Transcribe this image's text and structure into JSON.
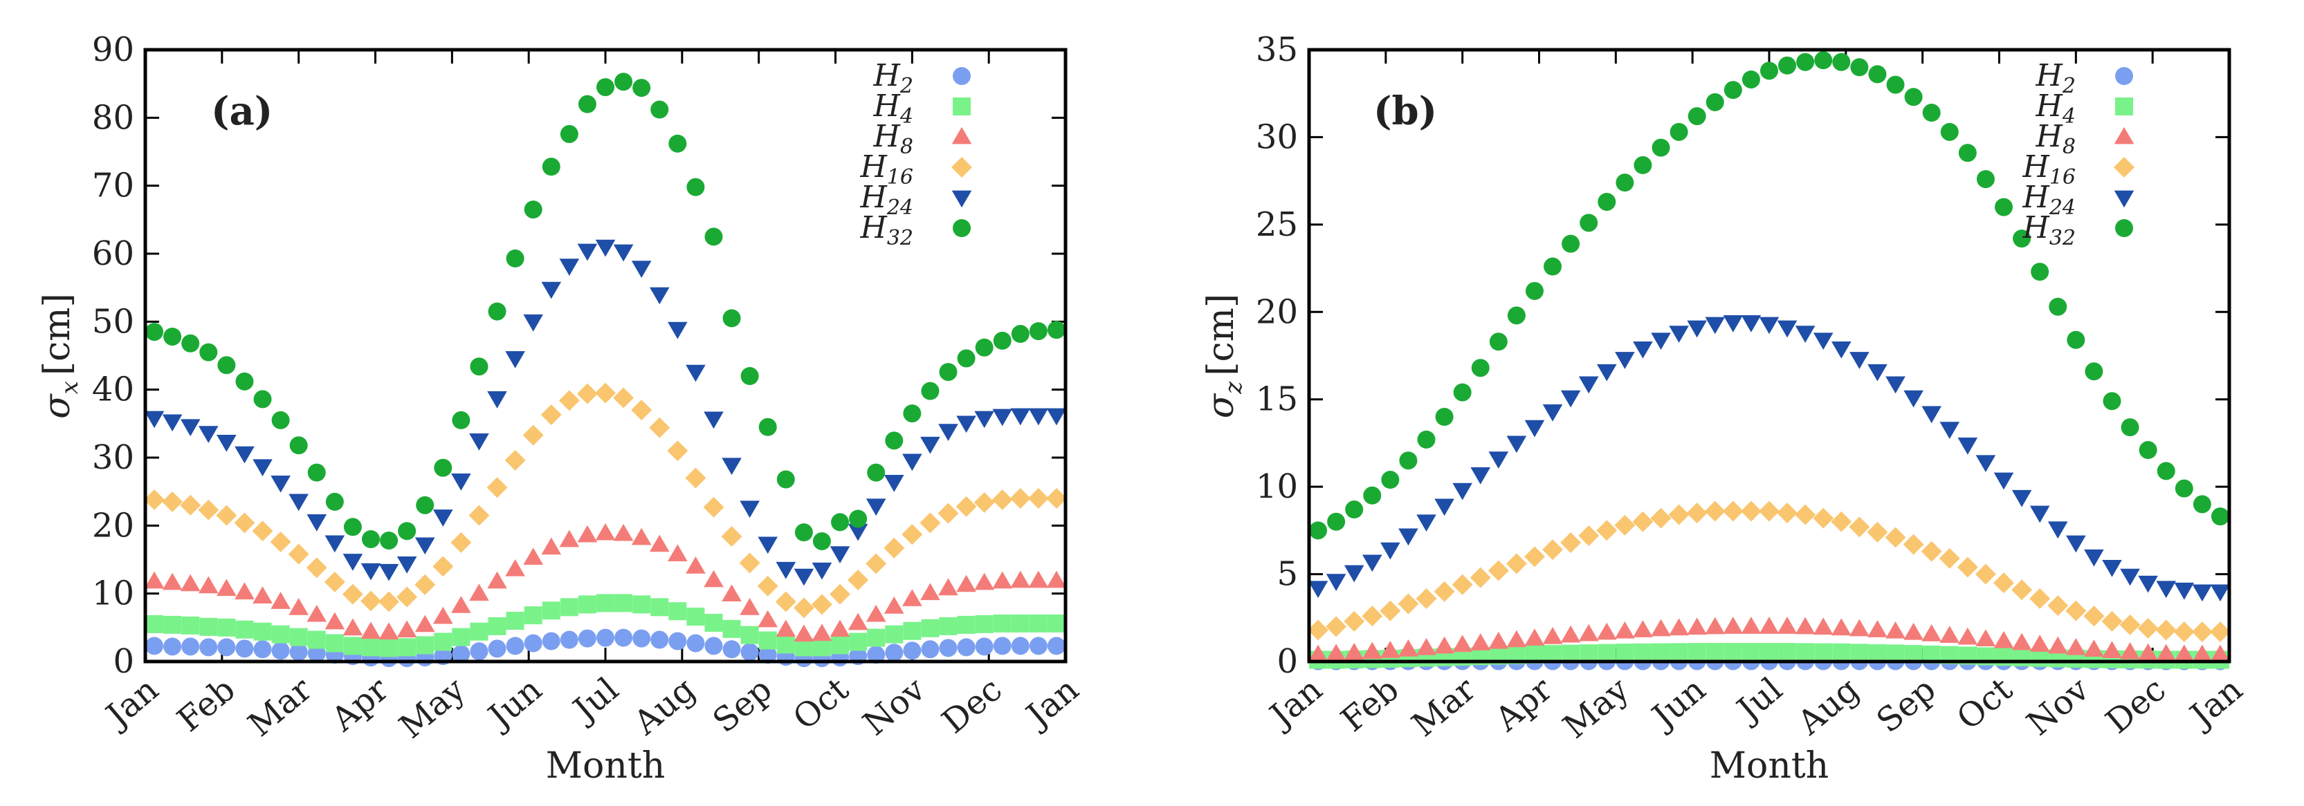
{
  "colors": {
    "H2": "#7b9ff0",
    "H4": "#7af28a",
    "H8": "#f47c78",
    "H16": "#f9c56e",
    "H24": "#1f4ea8",
    "H32": "#1aaa34"
  },
  "chart_data": [
    {
      "type": "scatter",
      "panel_label": "(a)",
      "xlabel": "Month",
      "ylabel_symbol": "σ",
      "ylabel_sub": "x",
      "ylabel_unit": "[cm]",
      "xlim": [
        0,
        12
      ],
      "ylim": [
        0,
        90
      ],
      "yticks": [
        0,
        10,
        20,
        30,
        40,
        50,
        60,
        70,
        80,
        90
      ],
      "xticklabels": [
        "Jan",
        "Feb",
        "Mar",
        "Apr",
        "May",
        "Jun",
        "Jul",
        "Aug",
        "Sep",
        "Oct",
        "Nov",
        "Dec",
        "Jan"
      ],
      "legend_position": "top-right",
      "series": [
        {
          "key": "H2",
          "name": "H",
          "sub": "2",
          "marker": "circle",
          "values": [
            2.3,
            2.2,
            2.2,
            2.1,
            2.1,
            1.9,
            1.8,
            1.6,
            1.4,
            1.2,
            1.0,
            0.8,
            0.6,
            0.5,
            0.5,
            0.6,
            0.8,
            1.1,
            1.5,
            1.9,
            2.3,
            2.7,
            3.0,
            3.2,
            3.4,
            3.5,
            3.5,
            3.4,
            3.2,
            3.0,
            2.7,
            2.3,
            1.8,
            1.4,
            1.0,
            0.7,
            0.5,
            0.5,
            0.6,
            0.8,
            1.0,
            1.3,
            1.6,
            1.8,
            2.0,
            2.1,
            2.2,
            2.3,
            2.3,
            2.3,
            2.3
          ]
        },
        {
          "key": "H4",
          "name": "H",
          "sub": "4",
          "marker": "square",
          "values": [
            5.5,
            5.4,
            5.3,
            5.1,
            5.0,
            4.7,
            4.4,
            4.0,
            3.6,
            3.2,
            2.7,
            2.3,
            2.1,
            2.0,
            2.1,
            2.4,
            2.9,
            3.6,
            4.4,
            5.2,
            6.0,
            6.8,
            7.5,
            8.0,
            8.4,
            8.6,
            8.6,
            8.4,
            8.0,
            7.4,
            6.6,
            5.7,
            4.8,
            3.9,
            3.1,
            2.5,
            2.1,
            2.1,
            2.4,
            2.9,
            3.5,
            4.0,
            4.5,
            4.9,
            5.2,
            5.4,
            5.5,
            5.6,
            5.6,
            5.6,
            5.6
          ]
        },
        {
          "key": "H8",
          "name": "H",
          "sub": "8",
          "marker": "triangle-up",
          "values": [
            11.8,
            11.6,
            11.4,
            11.1,
            10.7,
            10.2,
            9.6,
            8.8,
            7.9,
            6.9,
            5.8,
            4.9,
            4.4,
            4.3,
            4.6,
            5.4,
            6.6,
            8.2,
            10.0,
            11.8,
            13.6,
            15.3,
            16.8,
            17.9,
            18.6,
            18.9,
            18.8,
            18.2,
            17.2,
            15.8,
            14.0,
            12.0,
            9.9,
            7.9,
            6.1,
            4.7,
            4.0,
            4.1,
            4.7,
            5.7,
            6.9,
            8.1,
            9.2,
            10.1,
            10.8,
            11.3,
            11.6,
            11.8,
            11.9,
            11.9,
            11.9
          ]
        },
        {
          "key": "H16",
          "name": "H",
          "sub": "16",
          "marker": "diamond",
          "values": [
            23.8,
            23.5,
            23.0,
            22.3,
            21.5,
            20.4,
            19.2,
            17.6,
            15.8,
            13.8,
            11.7,
            9.9,
            8.9,
            8.8,
            9.5,
            11.3,
            14.0,
            17.5,
            21.5,
            25.6,
            29.6,
            33.3,
            36.3,
            38.4,
            39.4,
            39.5,
            38.8,
            37.0,
            34.4,
            31.0,
            27.0,
            22.7,
            18.4,
            14.5,
            11.1,
            8.8,
            7.9,
            8.4,
            9.9,
            12.0,
            14.4,
            16.7,
            18.7,
            20.4,
            21.8,
            22.8,
            23.4,
            23.8,
            24.0,
            24.0,
            24.0
          ]
        },
        {
          "key": "H24",
          "name": "H",
          "sub": "24",
          "marker": "triangle-down",
          "values": [
            35.8,
            35.3,
            34.6,
            33.6,
            32.3,
            30.6,
            28.7,
            26.3,
            23.6,
            20.6,
            17.5,
            14.8,
            13.4,
            13.3,
            14.4,
            17.2,
            21.3,
            26.6,
            32.5,
            38.7,
            44.6,
            50.0,
            54.8,
            58.2,
            60.4,
            61.0,
            60.3,
            57.9,
            54.0,
            48.9,
            42.6,
            35.7,
            28.9,
            22.6,
            17.3,
            13.6,
            12.6,
            13.5,
            15.9,
            19.2,
            22.9,
            26.4,
            29.5,
            32.0,
            33.9,
            35.1,
            35.8,
            36.1,
            36.2,
            36.2,
            36.2
          ]
        },
        {
          "key": "H32",
          "name": "H",
          "sub": "32",
          "marker": "circle",
          "values": [
            48.5,
            47.8,
            46.8,
            45.5,
            43.6,
            41.2,
            38.6,
            35.5,
            31.8,
            27.8,
            23.5,
            19.8,
            18.0,
            17.8,
            19.2,
            23.0,
            28.5,
            35.5,
            43.4,
            51.5,
            59.3,
            66.5,
            72.8,
            77.6,
            82.0,
            84.5,
            85.3,
            84.4,
            81.2,
            76.2,
            69.8,
            62.5,
            50.5,
            42.0,
            34.5,
            26.8,
            19.0,
            17.7,
            20.5,
            21.0,
            27.8,
            32.5,
            36.5,
            39.8,
            42.6,
            44.6,
            46.2,
            47.2,
            48.2,
            48.6,
            48.8
          ]
        }
      ]
    },
    {
      "type": "scatter",
      "panel_label": "(b)",
      "xlabel": "Month",
      "ylabel_symbol": "σ",
      "ylabel_sub": "z",
      "ylabel_unit": "[cm]",
      "xlim": [
        0,
        12
      ],
      "ylim": [
        0,
        35
      ],
      "yticks": [
        0,
        5,
        10,
        15,
        20,
        25,
        30,
        35
      ],
      "xticklabels": [
        "Jan",
        "Feb",
        "Mar",
        "Apr",
        "May",
        "Jun",
        "Jul",
        "Aug",
        "Sep",
        "Oct",
        "Nov",
        "Dec",
        "Jan"
      ],
      "legend_position": "top-right",
      "series": [
        {
          "key": "H2",
          "name": "H",
          "sub": "2",
          "marker": "circle",
          "values": [
            0.02,
            0.02,
            0.02,
            0.02,
            0.02,
            0.02,
            0.02,
            0.02,
            0.02,
            0.02,
            0.02,
            0.02,
            0.02,
            0.02,
            0.02,
            0.02,
            0.02,
            0.02,
            0.02,
            0.02,
            0.02,
            0.02,
            0.02,
            0.02,
            0.02,
            0.02,
            0.02,
            0.02,
            0.02,
            0.02,
            0.02,
            0.02,
            0.02,
            0.02,
            0.02,
            0.02,
            0.02,
            0.02,
            0.02,
            0.02,
            0.02,
            0.02,
            0.02,
            0.02,
            0.02,
            0.02,
            0.02,
            0.02,
            0.02,
            0.02,
            0.02
          ]
        },
        {
          "key": "H4",
          "name": "H",
          "sub": "4",
          "marker": "square",
          "values": [
            0.1,
            0.1,
            0.12,
            0.14,
            0.16,
            0.19,
            0.22,
            0.25,
            0.28,
            0.31,
            0.34,
            0.37,
            0.4,
            0.43,
            0.45,
            0.47,
            0.49,
            0.51,
            0.52,
            0.53,
            0.54,
            0.55,
            0.55,
            0.55,
            0.55,
            0.55,
            0.55,
            0.54,
            0.53,
            0.52,
            0.5,
            0.48,
            0.46,
            0.43,
            0.4,
            0.37,
            0.34,
            0.3,
            0.27,
            0.24,
            0.21,
            0.18,
            0.16,
            0.14,
            0.13,
            0.12,
            0.11,
            0.1,
            0.1,
            0.1,
            0.1
          ]
        },
        {
          "key": "H8",
          "name": "H",
          "sub": "8",
          "marker": "triangle-up",
          "values": [
            0.4,
            0.45,
            0.5,
            0.56,
            0.62,
            0.7,
            0.78,
            0.87,
            0.96,
            1.05,
            1.14,
            1.23,
            1.32,
            1.41,
            1.5,
            1.58,
            1.66,
            1.73,
            1.8,
            1.86,
            1.91,
            1.95,
            1.98,
            2.0,
            2.0,
            2.0,
            2.0,
            1.98,
            1.95,
            1.91,
            1.86,
            1.8,
            1.73,
            1.65,
            1.57,
            1.48,
            1.38,
            1.28,
            1.18,
            1.07,
            0.97,
            0.87,
            0.78,
            0.69,
            0.61,
            0.54,
            0.48,
            0.44,
            0.41,
            0.4,
            0.4
          ]
        },
        {
          "key": "H16",
          "name": "H",
          "sub": "16",
          "marker": "diamond",
          "values": [
            1.8,
            2.0,
            2.3,
            2.6,
            2.9,
            3.3,
            3.6,
            4.0,
            4.4,
            4.8,
            5.2,
            5.6,
            6.0,
            6.4,
            6.8,
            7.2,
            7.5,
            7.8,
            8.0,
            8.2,
            8.4,
            8.5,
            8.6,
            8.6,
            8.6,
            8.6,
            8.5,
            8.4,
            8.2,
            8.0,
            7.7,
            7.4,
            7.1,
            6.7,
            6.3,
            5.9,
            5.4,
            5.0,
            4.5,
            4.1,
            3.6,
            3.2,
            2.9,
            2.6,
            2.3,
            2.1,
            1.9,
            1.8,
            1.7,
            1.7,
            1.7
          ]
        },
        {
          "key": "H24",
          "name": "H",
          "sub": "24",
          "marker": "triangle-down",
          "values": [
            4.2,
            4.6,
            5.1,
            5.7,
            6.4,
            7.2,
            8.0,
            8.9,
            9.8,
            10.7,
            11.6,
            12.5,
            13.4,
            14.3,
            15.1,
            15.9,
            16.6,
            17.3,
            17.9,
            18.4,
            18.8,
            19.1,
            19.3,
            19.4,
            19.4,
            19.3,
            19.1,
            18.8,
            18.4,
            17.9,
            17.3,
            16.6,
            15.9,
            15.1,
            14.2,
            13.3,
            12.4,
            11.4,
            10.4,
            9.4,
            8.5,
            7.6,
            6.8,
            6.0,
            5.4,
            4.9,
            4.5,
            4.2,
            4.1,
            4.0,
            4.0
          ]
        },
        {
          "key": "H32",
          "name": "H",
          "sub": "32",
          "marker": "circle",
          "values": [
            7.5,
            8.0,
            8.7,
            9.5,
            10.4,
            11.5,
            12.7,
            14.0,
            15.4,
            16.8,
            18.3,
            19.8,
            21.2,
            22.6,
            23.9,
            25.1,
            26.3,
            27.4,
            28.4,
            29.4,
            30.3,
            31.2,
            32.0,
            32.7,
            33.3,
            33.8,
            34.1,
            34.3,
            34.4,
            34.3,
            34.0,
            33.6,
            33.0,
            32.3,
            31.4,
            30.3,
            29.1,
            27.6,
            26.0,
            24.2,
            22.3,
            20.3,
            18.4,
            16.6,
            14.9,
            13.4,
            12.1,
            10.9,
            9.9,
            9.0,
            8.3
          ]
        }
      ]
    }
  ]
}
